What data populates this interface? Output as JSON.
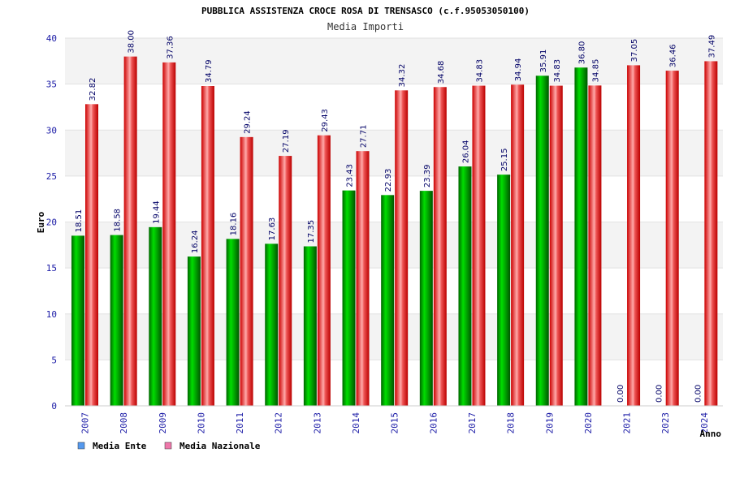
{
  "chart_data": {
    "type": "bar",
    "title": "PUBBLICA ASSISTENZA CROCE ROSA DI TRENSASCO (c.f.95053050100)",
    "subtitle": "Media Importi",
    "xlabel": "Anno",
    "ylabel": "Euro",
    "ylim": [
      0,
      40
    ],
    "yticks": [
      0,
      5,
      10,
      15,
      20,
      25,
      30,
      35,
      40
    ],
    "grid": true,
    "legend_position": "bottom-left",
    "categories": [
      "2007",
      "2008",
      "2009",
      "2010",
      "2011",
      "2012",
      "2013",
      "2014",
      "2015",
      "2016",
      "2017",
      "2018",
      "2019",
      "2020",
      "2021",
      "2023",
      "2024"
    ],
    "series": [
      {
        "name": "Media Ente",
        "color": "#00bb00",
        "legend_color": "#5599ee",
        "values": [
          18.51,
          18.58,
          19.44,
          16.24,
          18.16,
          17.63,
          17.35,
          23.43,
          22.93,
          23.39,
          26.04,
          25.15,
          35.91,
          36.8,
          0.0,
          0.0,
          0.0
        ],
        "labels": [
          "18.51",
          "18.58",
          "19.44",
          "16.24",
          "18.16",
          "17.63",
          "17.35",
          "23.43",
          "22.93",
          "23.39",
          "26.04",
          "25.15",
          "35.91",
          "36.80",
          "0.00",
          "0.00",
          "0.00"
        ]
      },
      {
        "name": "Media Nazionale",
        "color": "#ee1111",
        "legend_color": "#ee77aa",
        "values": [
          32.82,
          38.0,
          37.36,
          34.79,
          29.24,
          27.19,
          29.43,
          27.71,
          34.32,
          34.68,
          34.83,
          34.94,
          34.83,
          34.85,
          37.05,
          36.46,
          37.49
        ],
        "labels": [
          "32.82",
          "38.00",
          "37.36",
          "34.79",
          "29.24",
          "27.19",
          "29.43",
          "27.71",
          "34.32",
          "34.68",
          "34.83",
          "34.94",
          "34.83",
          "34.85",
          "37.05",
          "36.46",
          "37.49"
        ]
      }
    ]
  }
}
